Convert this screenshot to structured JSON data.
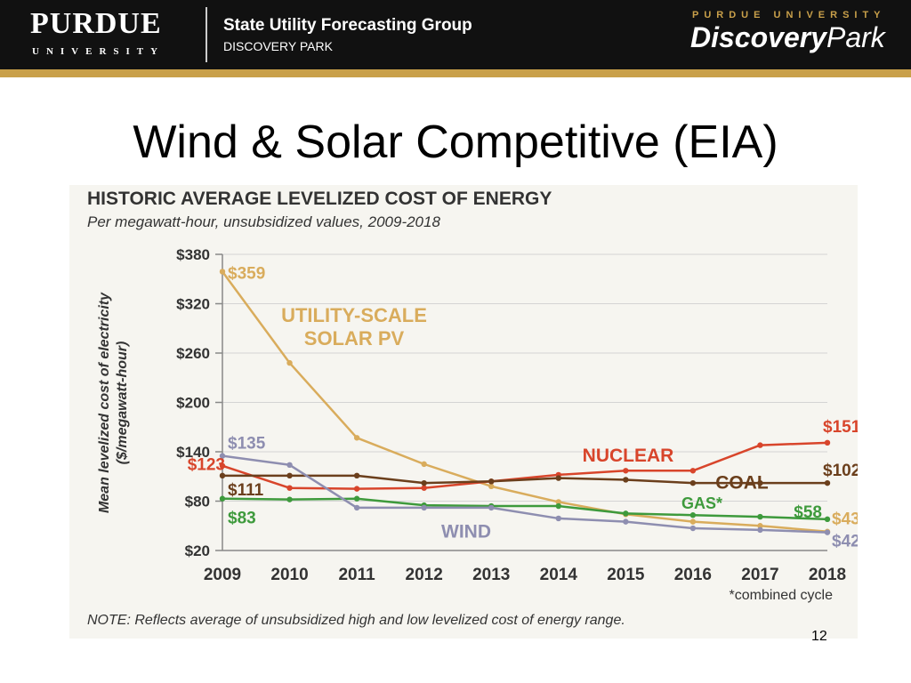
{
  "header": {
    "brand": "PURDUE",
    "brand_sub": "UNIVERSITY",
    "group_title": "State Utility Forecasting Group",
    "group_sub": "DISCOVERY PARK",
    "dp_university": "PURDUE UNIVERSITY",
    "dp_logo_main": "Discovery",
    "dp_logo_tail": "Park"
  },
  "slide": {
    "title": "Wind & Solar Competitive (EIA)",
    "page_number": "12"
  },
  "colors": {
    "solar": "#d9ac5c",
    "nuclear": "#d8452b",
    "coal": "#6b3f1c",
    "gas": "#3e9a3c",
    "wind": "#8e8eb0",
    "header_bg": "#111111",
    "gold": "#c9a04a"
  },
  "chart_data": {
    "type": "line",
    "title": "HISTORIC AVERAGE LEVELIZED COST OF ENERGY",
    "subtitle": "Per megawatt-hour, unsubsidized values, 2009-2018",
    "ylabel_line1": "Mean levelized cost of electricity",
    "ylabel_line2": "($/megawatt-hour)",
    "xlabel": "",
    "x": [
      "2009",
      "2010",
      "2011",
      "2012",
      "2013",
      "2014",
      "2015",
      "2016",
      "2017",
      "2018"
    ],
    "ylim": [
      20,
      380
    ],
    "yticks": [
      20,
      80,
      140,
      200,
      260,
      320,
      380
    ],
    "ytick_labels": [
      "$20",
      "$80",
      "$140",
      "$200",
      "$260",
      "$320",
      "$380"
    ],
    "grid": true,
    "x_footnote": "*combined cycle",
    "note": "NOTE: Reflects average of unsubsidized high and low levelized cost of energy range.",
    "series": [
      {
        "name": "UTILITY-SCALE SOLAR PV",
        "label_line1": "UTILITY-SCALE",
        "label_line2": "SOLAR PV",
        "color": "#d9ac5c",
        "values": [
          359,
          248,
          157,
          125,
          98,
          79,
          64,
          55,
          50,
          43
        ],
        "start_label": "$359",
        "end_label": "$43"
      },
      {
        "name": "NUCLEAR",
        "color": "#d8452b",
        "values": [
          123,
          96,
          95,
          96,
          104,
          112,
          117,
          117,
          148,
          151
        ],
        "start_label": "$123",
        "end_label": "$151"
      },
      {
        "name": "COAL",
        "color": "#6b3f1c",
        "values": [
          111,
          111,
          111,
          102,
          104,
          108,
          106,
          102,
          102,
          102
        ],
        "start_label": "$111",
        "end_label": "$102"
      },
      {
        "name": "GAS*",
        "color": "#3e9a3c",
        "values": [
          83,
          82,
          83,
          75,
          74,
          74,
          65,
          63,
          61,
          58
        ],
        "start_label": "$83",
        "end_label": "$58"
      },
      {
        "name": "WIND",
        "color": "#8e8eb0",
        "values": [
          135,
          124,
          72,
          72,
          72,
          59,
          55,
          47,
          45,
          42
        ],
        "start_label": "$135",
        "end_label": "$42"
      }
    ]
  }
}
